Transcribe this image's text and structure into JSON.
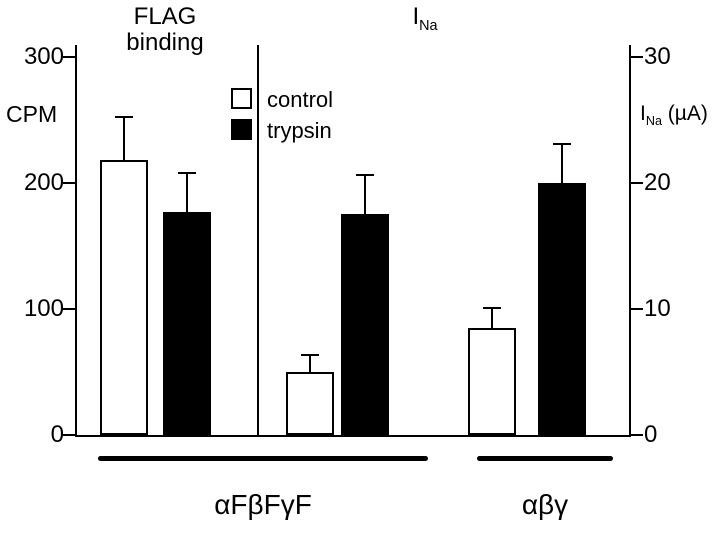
{
  "header": {
    "left_title_line1": "FLAG",
    "left_title_line2": "binding",
    "right_title_main": "I",
    "right_title_sub": "Na"
  },
  "axes": {
    "left": {
      "title": "CPM",
      "ticks": [
        "300",
        "200",
        "100",
        "0"
      ]
    },
    "right": {
      "title_main": "I",
      "title_sub": "Na",
      "title_unit": " (µA)",
      "ticks": [
        "30",
        "20",
        "10",
        "0"
      ]
    }
  },
  "legend": {
    "items": [
      {
        "label": "control",
        "fill": "#ffffff"
      },
      {
        "label": "trypsin",
        "fill": "#000000"
      }
    ]
  },
  "footer": {
    "group1_label": "αFβFγF",
    "group2_label": "αβγ"
  },
  "chart_data": {
    "type": "bar",
    "series_names": [
      "control",
      "trypsin"
    ],
    "panels": [
      {
        "name": "FLAG binding",
        "y_axis": "CPM",
        "ylim": [
          0,
          300
        ],
        "yticks": [
          0,
          100,
          200,
          300
        ],
        "groups": [
          {
            "category": "αFβFγF",
            "bars": [
              {
                "series": "control",
                "value": 218,
                "error_plus": 33
              },
              {
                "series": "trypsin",
                "value": 177,
                "error_plus": 30
              }
            ]
          }
        ]
      },
      {
        "name": "I_Na",
        "y_axis": "I_Na (µA)",
        "ylim": [
          0,
          30
        ],
        "yticks": [
          0,
          10,
          20,
          30
        ],
        "groups": [
          {
            "category": "αFβFγF",
            "bars": [
              {
                "series": "control",
                "value": 5,
                "error_plus": 1.3
              },
              {
                "series": "trypsin",
                "value": 17.5,
                "error_plus": 3
              }
            ]
          },
          {
            "category": "αβγ",
            "bars": [
              {
                "series": "control",
                "value": 8.5,
                "error_plus": 1.5
              },
              {
                "series": "trypsin",
                "value": 20,
                "error_plus": 3
              }
            ]
          }
        ]
      }
    ],
    "legend_position": "upper center",
    "grid": false
  }
}
